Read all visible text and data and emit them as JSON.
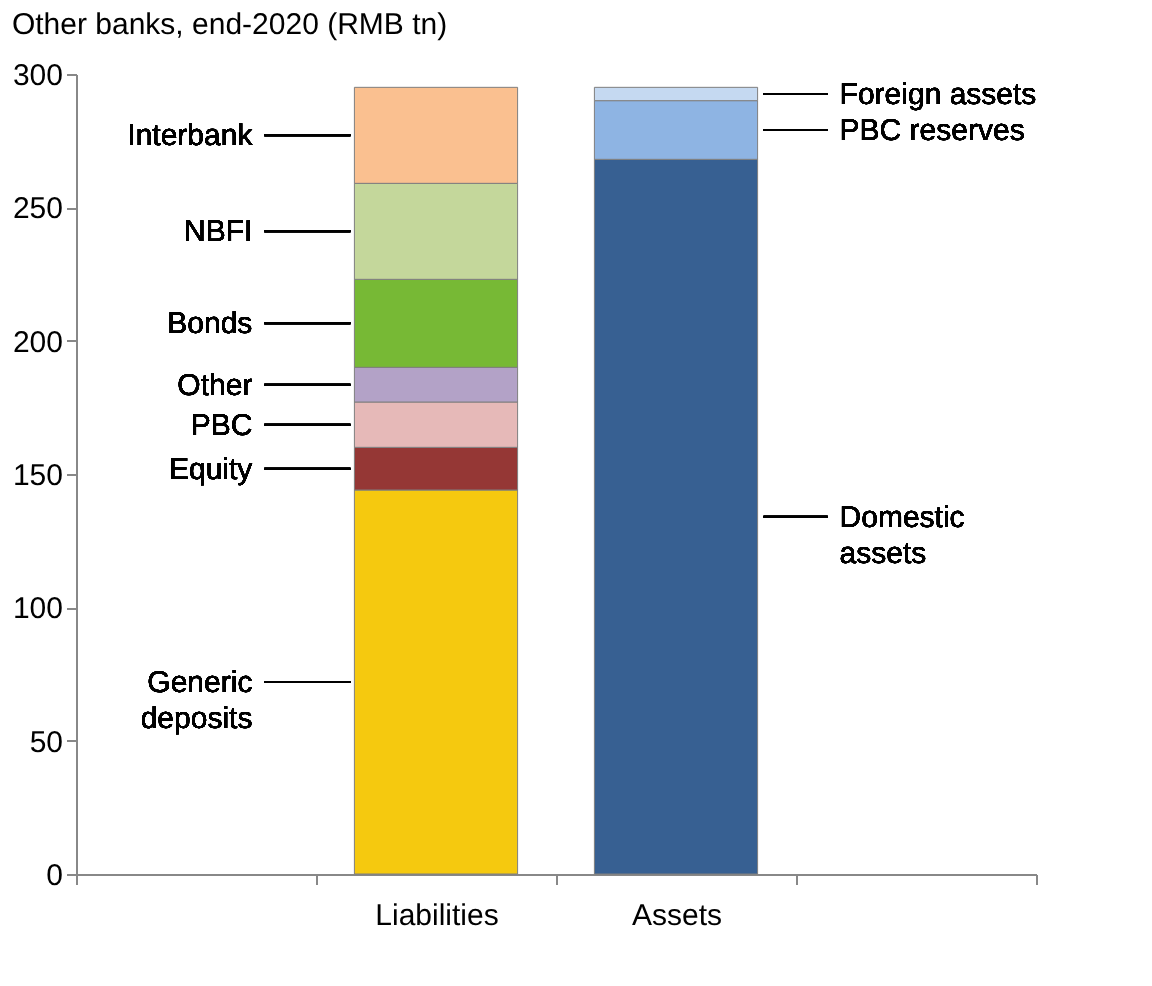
{
  "chart_data": {
    "type": "bar",
    "title": "Other banks, end-2020 (RMB tn)",
    "stacked": true,
    "categories": [
      null,
      "Liabilities",
      "Assets",
      null
    ],
    "series": [
      {
        "name": "Generic deposits",
        "color": "#f5c90f",
        "values": [
          null,
          144,
          null,
          null
        ]
      },
      {
        "name": "Equity",
        "color": "#953735",
        "values": [
          null,
          16,
          null,
          null
        ]
      },
      {
        "name": "PBC",
        "color": "#e6b9b8",
        "values": [
          null,
          17,
          null,
          null
        ]
      },
      {
        "name": "Other",
        "color": "#b3a2c7",
        "values": [
          null,
          13,
          null,
          null
        ]
      },
      {
        "name": "Bonds",
        "color": "#77b935",
        "values": [
          null,
          33,
          null,
          null
        ]
      },
      {
        "name": "NBFI",
        "color": "#c4d79b",
        "values": [
          null,
          36,
          null,
          null
        ]
      },
      {
        "name": "Interbank",
        "color": "#fac090",
        "values": [
          null,
          36,
          null,
          null
        ]
      },
      {
        "name": "Domestic assets",
        "color": "#376092",
        "values": [
          null,
          null,
          268,
          null
        ]
      },
      {
        "name": "PBC reserves",
        "color": "#8eb4e3",
        "values": [
          null,
          null,
          22,
          null
        ]
      },
      {
        "name": "Foreign assets",
        "color": "#c5d9f1",
        "values": [
          null,
          null,
          5,
          null
        ]
      }
    ],
    "ylim": [
      0,
      300
    ],
    "yticks": [
      0,
      50,
      100,
      150,
      200,
      250,
      300
    ],
    "grid": false
  }
}
